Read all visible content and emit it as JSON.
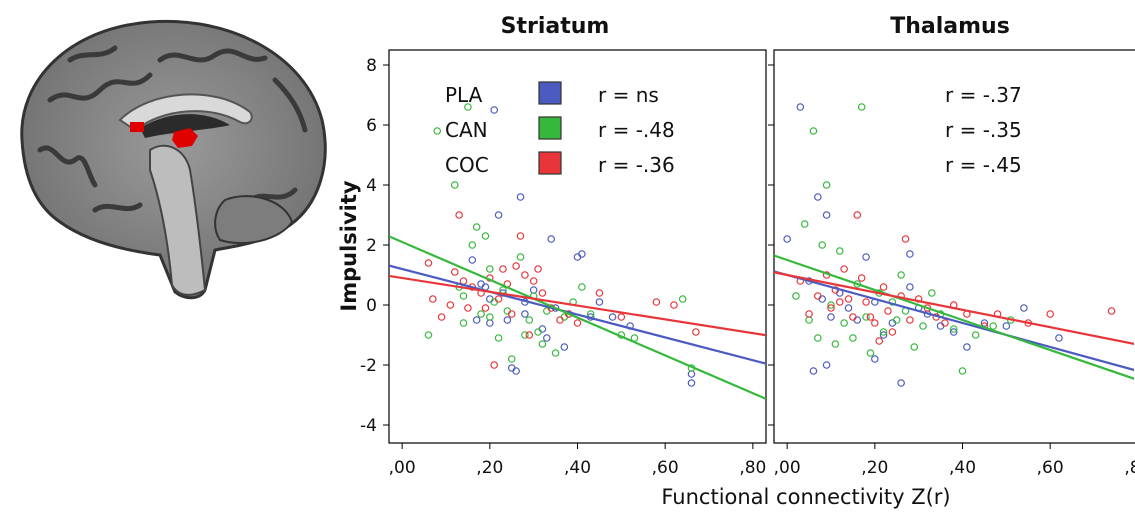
{
  "colors": {
    "PLA": "#4b5bbf",
    "CAN": "#35b83b",
    "COC": "#e8353a",
    "roi": "#e00000"
  },
  "figure": {
    "ylabel": "Impulsivity",
    "xlabel": "Functional connectivity  Z(r)"
  },
  "brain_icon": "sagittal-brain-mri-icon",
  "chart_data": [
    {
      "type": "scatter",
      "title": "Striatum",
      "xlim": [
        -0.03,
        0.83
      ],
      "ylim": [
        -4.6,
        8.5
      ],
      "xticks": [
        0,
        0.2,
        0.4,
        0.6,
        0.8
      ],
      "xtick_labels": [
        ",00",
        ",20",
        ",40",
        ",60",
        ",80"
      ],
      "yticks": [
        8,
        6,
        4,
        2,
        0,
        -2,
        -4
      ],
      "ytick_labels": [
        "8",
        "6",
        "4",
        "2",
        "0",
        "-2",
        "-4"
      ],
      "legend": {
        "position": "top-left",
        "entries": [
          {
            "name": "PLA",
            "r": "r =  ns"
          },
          {
            "name": "CAN",
            "r": "r = -.48"
          },
          {
            "name": "COC",
            "r": "r = -.36"
          }
        ]
      },
      "series": [
        {
          "name": "PLA",
          "fit": {
            "slope": -3.8,
            "intercept": 1.2
          },
          "points": [
            [
              0.16,
              1.5
            ],
            [
              0.18,
              0.7
            ],
            [
              0.2,
              0.2
            ],
            [
              0.21,
              6.5
            ],
            [
              0.22,
              3.0
            ],
            [
              0.23,
              0.4
            ],
            [
              0.24,
              -0.5
            ],
            [
              0.25,
              -2.1
            ],
            [
              0.26,
              -2.2
            ],
            [
              0.27,
              3.6
            ],
            [
              0.28,
              -0.3
            ],
            [
              0.3,
              0.5
            ],
            [
              0.32,
              -0.8
            ],
            [
              0.34,
              2.2
            ],
            [
              0.35,
              -0.1
            ],
            [
              0.37,
              -1.4
            ],
            [
              0.38,
              -0.3
            ],
            [
              0.4,
              1.6
            ],
            [
              0.41,
              1.7
            ],
            [
              0.43,
              -0.4
            ],
            [
              0.45,
              0.1
            ],
            [
              0.48,
              -0.4
            ],
            [
              0.52,
              -0.7
            ],
            [
              0.66,
              -2.6
            ],
            [
              0.66,
              -2.3
            ],
            [
              0.2,
              -0.6
            ],
            [
              0.17,
              -0.5
            ],
            [
              0.28,
              0.1
            ],
            [
              0.33,
              -1.1
            ],
            [
              0.19,
              0.6
            ]
          ]
        },
        {
          "name": "CAN",
          "fit": {
            "slope": -6.3,
            "intercept": 2.1
          },
          "points": [
            [
              0.06,
              -1.0
            ],
            [
              0.08,
              5.8
            ],
            [
              0.12,
              4.0
            ],
            [
              0.13,
              0.6
            ],
            [
              0.14,
              -0.6
            ],
            [
              0.15,
              6.6
            ],
            [
              0.16,
              2.0
            ],
            [
              0.17,
              2.6
            ],
            [
              0.18,
              -0.3
            ],
            [
              0.19,
              2.3
            ],
            [
              0.2,
              1.2
            ],
            [
              0.21,
              0.1
            ],
            [
              0.22,
              -1.1
            ],
            [
              0.23,
              0.5
            ],
            [
              0.24,
              -0.2
            ],
            [
              0.25,
              -1.8
            ],
            [
              0.27,
              1.6
            ],
            [
              0.28,
              -1.0
            ],
            [
              0.29,
              -0.5
            ],
            [
              0.3,
              0.3
            ],
            [
              0.31,
              -0.9
            ],
            [
              0.33,
              -0.2
            ],
            [
              0.35,
              -1.6
            ],
            [
              0.37,
              -0.4
            ],
            [
              0.39,
              0.1
            ],
            [
              0.41,
              0.6
            ],
            [
              0.43,
              -0.3
            ],
            [
              0.5,
              -1.0
            ],
            [
              0.53,
              -1.1
            ],
            [
              0.64,
              0.2
            ],
            [
              0.66,
              -2.1
            ],
            [
              0.14,
              0.3
            ],
            [
              0.2,
              -0.4
            ],
            [
              0.32,
              -1.3
            ]
          ]
        },
        {
          "name": "COC",
          "fit": {
            "slope": -2.3,
            "intercept": 0.9
          },
          "points": [
            [
              0.06,
              1.4
            ],
            [
              0.07,
              0.2
            ],
            [
              0.09,
              -0.4
            ],
            [
              0.11,
              0.0
            ],
            [
              0.12,
              1.1
            ],
            [
              0.13,
              3.0
            ],
            [
              0.14,
              0.8
            ],
            [
              0.15,
              -0.1
            ],
            [
              0.16,
              0.6
            ],
            [
              0.18,
              0.4
            ],
            [
              0.2,
              0.9
            ],
            [
              0.21,
              -2.0
            ],
            [
              0.22,
              0.2
            ],
            [
              0.24,
              0.7
            ],
            [
              0.25,
              -0.3
            ],
            [
              0.26,
              1.3
            ],
            [
              0.27,
              2.3
            ],
            [
              0.28,
              1.0
            ],
            [
              0.29,
              -1.0
            ],
            [
              0.3,
              0.8
            ],
            [
              0.31,
              1.2
            ],
            [
              0.32,
              0.4
            ],
            [
              0.34,
              -0.1
            ],
            [
              0.36,
              -0.5
            ],
            [
              0.38,
              -0.3
            ],
            [
              0.4,
              -0.6
            ],
            [
              0.45,
              0.4
            ],
            [
              0.5,
              -0.4
            ],
            [
              0.58,
              0.1
            ],
            [
              0.62,
              0.0
            ],
            [
              0.67,
              -0.9
            ],
            [
              0.23,
              1.2
            ],
            [
              0.19,
              -0.1
            ]
          ]
        }
      ]
    },
    {
      "type": "scatter",
      "title": "Thalamus",
      "xlim": [
        -0.03,
        0.83
      ],
      "ylim": [
        -4.6,
        8.5
      ],
      "xticks": [
        0,
        0.2,
        0.4,
        0.6,
        0.8
      ],
      "xtick_labels": [
        ",00",
        ",20",
        ",40",
        ",60",
        ",80"
      ],
      "yticks": [
        8,
        6,
        4,
        2,
        0,
        -2,
        -4
      ],
      "ytick_labels": [],
      "legend": {
        "position": "top-right",
        "entries": [
          {
            "name": "PLA",
            "r": "r = -.37"
          },
          {
            "name": "CAN",
            "r": "r = -.35"
          },
          {
            "name": "COC",
            "r": "r = -.45"
          }
        ]
      },
      "series": [
        {
          "name": "PLA",
          "fit": {
            "slope": -4.0,
            "intercept": 1.0
          },
          "points": [
            [
              0.0,
              2.2
            ],
            [
              0.03,
              6.6
            ],
            [
              0.05,
              0.8
            ],
            [
              0.06,
              -2.2
            ],
            [
              0.07,
              3.6
            ],
            [
              0.08,
              0.2
            ],
            [
              0.09,
              3.0
            ],
            [
              0.1,
              -0.4
            ],
            [
              0.12,
              0.4
            ],
            [
              0.14,
              -0.1
            ],
            [
              0.16,
              -0.5
            ],
            [
              0.18,
              1.6
            ],
            [
              0.2,
              0.1
            ],
            [
              0.22,
              -1.0
            ],
            [
              0.24,
              -0.6
            ],
            [
              0.26,
              -2.6
            ],
            [
              0.28,
              0.6
            ],
            [
              0.3,
              -0.1
            ],
            [
              0.32,
              -0.3
            ],
            [
              0.35,
              -0.7
            ],
            [
              0.38,
              -0.9
            ],
            [
              0.41,
              -1.4
            ],
            [
              0.45,
              -0.6
            ],
            [
              0.5,
              -0.7
            ],
            [
              0.54,
              -0.1
            ],
            [
              0.62,
              -1.1
            ],
            [
              0.09,
              -2.0
            ],
            [
              0.2,
              -1.8
            ],
            [
              0.28,
              1.7
            ]
          ]
        },
        {
          "name": "CAN",
          "fit": {
            "slope": -5.0,
            "intercept": 1.5
          },
          "points": [
            [
              0.02,
              0.3
            ],
            [
              0.04,
              2.7
            ],
            [
              0.05,
              -0.5
            ],
            [
              0.06,
              5.8
            ],
            [
              0.07,
              -1.1
            ],
            [
              0.08,
              2.0
            ],
            [
              0.09,
              4.0
            ],
            [
              0.1,
              0.0
            ],
            [
              0.12,
              1.8
            ],
            [
              0.13,
              -0.6
            ],
            [
              0.15,
              -1.1
            ],
            [
              0.16,
              0.7
            ],
            [
              0.17,
              6.6
            ],
            [
              0.18,
              -0.4
            ],
            [
              0.19,
              -1.6
            ],
            [
              0.21,
              0.4
            ],
            [
              0.22,
              -0.9
            ],
            [
              0.24,
              0.1
            ],
            [
              0.26,
              1.0
            ],
            [
              0.27,
              -0.2
            ],
            [
              0.29,
              -1.4
            ],
            [
              0.31,
              -0.7
            ],
            [
              0.33,
              0.4
            ],
            [
              0.35,
              -0.3
            ],
            [
              0.38,
              -0.8
            ],
            [
              0.4,
              -2.2
            ],
            [
              0.43,
              -1.0
            ],
            [
              0.47,
              -0.7
            ],
            [
              0.51,
              -0.5
            ],
            [
              0.11,
              -1.3
            ],
            [
              0.25,
              -0.5
            ]
          ]
        },
        {
          "name": "COC",
          "fit": {
            "slope": -2.9,
            "intercept": 1.0
          },
          "points": [
            [
              0.03,
              0.8
            ],
            [
              0.05,
              -0.3
            ],
            [
              0.07,
              0.3
            ],
            [
              0.09,
              1.0
            ],
            [
              0.1,
              -0.1
            ],
            [
              0.11,
              0.5
            ],
            [
              0.13,
              1.2
            ],
            [
              0.14,
              0.2
            ],
            [
              0.15,
              -0.4
            ],
            [
              0.16,
              3.0
            ],
            [
              0.17,
              0.9
            ],
            [
              0.18,
              0.1
            ],
            [
              0.2,
              -0.6
            ],
            [
              0.21,
              -1.2
            ],
            [
              0.22,
              0.6
            ],
            [
              0.23,
              -0.2
            ],
            [
              0.24,
              -0.9
            ],
            [
              0.26,
              0.3
            ],
            [
              0.27,
              2.2
            ],
            [
              0.28,
              -0.5
            ],
            [
              0.3,
              0.2
            ],
            [
              0.32,
              -0.1
            ],
            [
              0.34,
              -0.4
            ],
            [
              0.36,
              -0.6
            ],
            [
              0.38,
              0.0
            ],
            [
              0.41,
              -0.3
            ],
            [
              0.45,
              -0.7
            ],
            [
              0.48,
              -0.3
            ],
            [
              0.55,
              -0.6
            ],
            [
              0.6,
              -0.3
            ],
            [
              0.74,
              -0.2
            ],
            [
              0.12,
              0.1
            ],
            [
              0.19,
              -0.4
            ]
          ]
        }
      ]
    }
  ]
}
